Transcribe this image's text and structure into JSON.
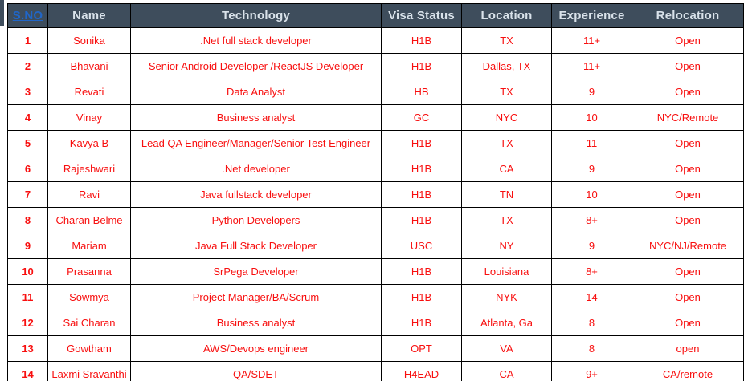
{
  "colors": {
    "header_bg": "#3E4D5C",
    "header_fg": "#D9E2EA",
    "data_red": "#F80F0F",
    "link_blue": "#2066C8",
    "border": "#000000"
  },
  "table": {
    "columns": [
      {
        "key": "sno",
        "label": "S.NO"
      },
      {
        "key": "name",
        "label": "Name"
      },
      {
        "key": "technology",
        "label": "Technology"
      },
      {
        "key": "visa_status",
        "label": "Visa Status"
      },
      {
        "key": "location",
        "label": "Location"
      },
      {
        "key": "experience",
        "label": "Experience"
      },
      {
        "key": "relocation",
        "label": "Relocation"
      }
    ],
    "rows": [
      [
        "1",
        "Sonika",
        ".Net full stack developer",
        "H1B",
        "TX",
        "11+",
        "Open"
      ],
      [
        "2",
        "Bhavani",
        "Senior Android Developer /ReactJS Developer",
        "H1B",
        "Dallas, TX",
        "11+",
        "Open"
      ],
      [
        "3",
        "Revati",
        "Data Analyst",
        "HB",
        "TX",
        "9",
        "Open"
      ],
      [
        "4",
        "Vinay",
        "Business analyst",
        "GC",
        "NYC",
        "10",
        "NYC/Remote"
      ],
      [
        "5",
        "Kavya B",
        "Lead QA Engineer/Manager/Senior Test Engineer",
        "H1B",
        "TX",
        "11",
        "Open"
      ],
      [
        "6",
        "Rajeshwari",
        ".Net developer",
        "H1B",
        "CA",
        "9",
        "Open"
      ],
      [
        "7",
        "Ravi",
        "Java fullstack developer",
        "H1B",
        "TN",
        "10",
        "Open"
      ],
      [
        "8",
        "Charan Belme",
        "Python Developers",
        "H1B",
        "TX",
        "8+",
        "Open"
      ],
      [
        "9",
        "Mariam",
        "Java Full Stack Developer",
        "USC",
        "NY",
        "9",
        "NYC/NJ/Remote"
      ],
      [
        "10",
        "Prasanna",
        "SrPega Developer",
        "H1B",
        "Louisiana",
        "8+",
        "Open"
      ],
      [
        "11",
        "Sowmya",
        "Project Manager/BA/Scrum",
        "H1B",
        "NYK",
        "14",
        "Open"
      ],
      [
        "12",
        "Sai Charan",
        "Business analyst",
        "H1B",
        "Atlanta, Ga",
        "8",
        "Open"
      ],
      [
        "13",
        "Gowtham",
        "AWS/Devops engineer",
        "OPT",
        "VA",
        "8",
        "open"
      ],
      [
        "14",
        "Laxmi Sravanthi",
        "QA/SDET",
        "H4EAD",
        "CA",
        "9+",
        "CA/remote"
      ]
    ]
  }
}
